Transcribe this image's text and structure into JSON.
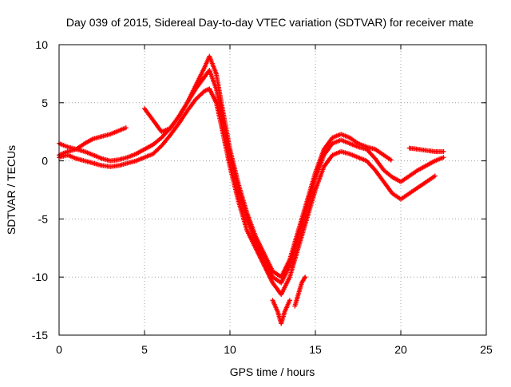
{
  "chart_data": {
    "type": "scatter",
    "title": "Day 039 of 2015, Sidereal Day-to-day VTEC variation (SDTVAR) for receiver mate",
    "xlabel": "GPS time / hours",
    "ylabel": "SDTVAR / TECUs",
    "xlim": [
      0,
      25
    ],
    "ylim": [
      -15,
      10
    ],
    "x_ticks": [
      0,
      5,
      10,
      15,
      20,
      25
    ],
    "y_ticks": [
      -15,
      -10,
      -5,
      0,
      5,
      10
    ],
    "x_tick_labels": [
      "0",
      "5",
      "10",
      "15",
      "20",
      "25"
    ],
    "y_tick_labels": [
      "-15",
      "-10",
      "-5",
      "0",
      "5",
      "10"
    ],
    "grid": true,
    "marker": "plus",
    "color": "#ff0000",
    "series": [
      {
        "x": [
          0.0,
          0.5,
          1.0,
          1.5,
          2.0,
          2.5,
          3.0,
          3.5,
          4.0,
          4.5,
          5.0,
          5.5,
          6.0,
          6.5,
          7.0,
          7.5,
          8.0,
          8.5,
          8.8,
          9.2,
          9.5,
          10.0,
          10.5,
          11.0,
          11.5,
          12.0,
          12.5,
          13.0,
          13.5,
          14.0,
          14.5,
          15.0,
          15.5,
          16.0,
          16.5,
          17.0,
          17.5,
          18.0,
          18.5,
          19.0,
          19.5,
          20.0,
          20.5,
          21.0,
          21.5,
          22.0
        ],
        "y": [
          0.3,
          0.5,
          0.2,
          0.0,
          -0.2,
          -0.4,
          -0.5,
          -0.4,
          -0.2,
          0.0,
          0.3,
          0.6,
          1.3,
          2.2,
          3.2,
          4.3,
          5.3,
          6.0,
          6.2,
          5.0,
          3.0,
          -0.5,
          -3.5,
          -6.0,
          -7.5,
          -9.0,
          -10.5,
          -11.5,
          -10.0,
          -7.5,
          -5.0,
          -2.5,
          -0.5,
          0.5,
          0.8,
          0.6,
          0.3,
          0.0,
          -0.8,
          -1.8,
          -2.8,
          -3.3,
          -2.8,
          -2.3,
          -1.8,
          -1.3
        ]
      },
      {
        "x": [
          0.0,
          0.5,
          1.0,
          1.5,
          2.0,
          2.5,
          3.0,
          3.5,
          4.0,
          4.5,
          5.0,
          5.5,
          6.0,
          6.5,
          7.0,
          7.5,
          8.0,
          8.5,
          8.8,
          9.2,
          9.5,
          10.0,
          10.5,
          11.0,
          11.5,
          12.0,
          12.5,
          13.0,
          13.5,
          14.0,
          14.5,
          15.0,
          15.5,
          16.0,
          16.5,
          17.0,
          17.5,
          18.0,
          18.5,
          19.0,
          19.5,
          20.0,
          20.5,
          21.0,
          21.5,
          22.0,
          22.5
        ],
        "y": [
          1.5,
          1.2,
          1.0,
          0.8,
          0.5,
          0.2,
          0.0,
          0.1,
          0.3,
          0.6,
          1.0,
          1.4,
          2.0,
          2.8,
          3.8,
          5.0,
          6.2,
          7.2,
          7.8,
          6.2,
          4.0,
          0.5,
          -2.5,
          -5.0,
          -7.0,
          -8.5,
          -10.0,
          -10.5,
          -9.0,
          -6.5,
          -4.0,
          -1.5,
          0.5,
          1.5,
          1.8,
          1.5,
          1.2,
          1.0,
          0.2,
          -0.8,
          -1.4,
          -1.8,
          -1.3,
          -0.8,
          -0.4,
          0.0,
          0.3
        ]
      },
      {
        "x": [
          0.0,
          0.5,
          1.0,
          1.5,
          2.0,
          2.5,
          3.0,
          3.5,
          4.0,
          5.0,
          5.5,
          6.0,
          6.5,
          7.0,
          7.5,
          8.0,
          8.5,
          8.8,
          9.2,
          9.5,
          10.0,
          10.5,
          11.0,
          11.5,
          12.0,
          12.5,
          13.0,
          13.5,
          14.0,
          14.5,
          15.0,
          15.5,
          16.0,
          16.5,
          17.0,
          17.5,
          18.0,
          18.5,
          19.0,
          19.5,
          20.5,
          21.0,
          21.5,
          22.0,
          22.5
        ],
        "y": [
          0.5,
          0.8,
          1.0,
          1.5,
          1.9,
          2.1,
          2.3,
          2.6,
          2.9,
          4.5,
          3.5,
          2.5,
          2.8,
          3.8,
          5.0,
          6.5,
          8.0,
          9.0,
          7.5,
          5.0,
          1.0,
          -2.0,
          -4.5,
          -6.5,
          -8.0,
          -9.5,
          -10.0,
          -8.5,
          -6.0,
          -3.5,
          -1.0,
          1.0,
          2.0,
          2.3,
          2.0,
          1.5,
          1.2,
          1.0,
          0.5,
          0.0,
          1.1,
          1.0,
          0.9,
          0.8,
          0.8
        ]
      },
      {
        "x": [
          12.5,
          12.8,
          13.0,
          13.2,
          13.5
        ],
        "y": [
          -12.0,
          -13.0,
          -14.0,
          -13.0,
          -12.0
        ]
      },
      {
        "x": [
          13.8,
          14.0,
          14.2,
          14.4
        ],
        "y": [
          -12.5,
          -11.5,
          -10.5,
          -10.0
        ]
      }
    ]
  }
}
